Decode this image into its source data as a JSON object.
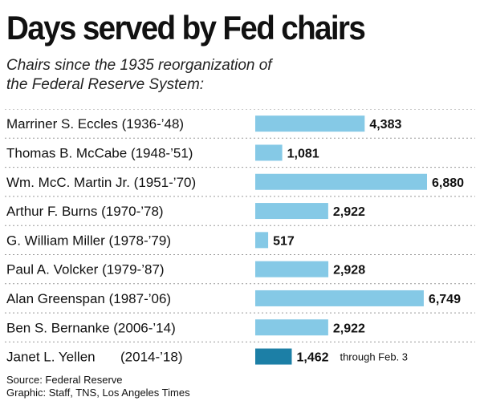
{
  "title": "Days served by Fed chairs",
  "subtitle": {
    "line1": "Chairs since the 1935 reorganization of",
    "line2": "the Federal Reserve System:"
  },
  "chart_data": {
    "type": "bar",
    "orientation": "horizontal",
    "title": "Days served by Fed chairs",
    "categories": [
      "Marriner S. Eccles (1936-’48)",
      "Thomas B. McCabe (1948-’51)",
      "Wm. McC. Martin Jr. (1951-’70)",
      "Arthur F. Burns (1970-’78)",
      "G. William Miller (1978-’79)",
      "Paul A. Volcker (1979-’87)",
      "Alan Greenspan (1987-’06)",
      "Ben S. Bernanke (2006-’14)",
      "Janet L. Yellen"
    ],
    "values": [
      4383,
      1081,
      6880,
      2922,
      517,
      2928,
      6749,
      2922,
      1462
    ],
    "value_labels": [
      "4,383",
      "1,081",
      "6,880",
      "2,922",
      "517",
      "2,928",
      "6,749",
      "2,922",
      "1,462"
    ],
    "last_row_date": "(2014-’18)",
    "last_row_note": "through Feb. 3",
    "colors": {
      "bar": "#85c9e6",
      "highlight": "#1c7fa6"
    },
    "xlim": [
      0,
      6880
    ],
    "grid": false
  },
  "footer": {
    "source": "Source: Federal Reserve",
    "credit": "Graphic: Staff, TNS, Los Angeles Times"
  }
}
